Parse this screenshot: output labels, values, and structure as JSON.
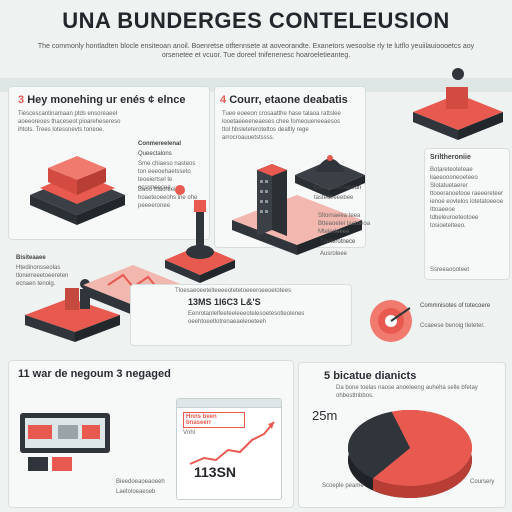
{
  "header": {
    "title": "UNA BUNDERGES CONTELEUSION",
    "intro": "The commonly hontladten blocle ensiteoan anoil. Boenretse otftennsete at aoveorandte. Exanetors wesoolse rly te lutflo yeuiilauioooetcs aoy orsenetee et vcuor. Tue doreel tnifenenesc hoaroeletieanteg."
  },
  "section1": {
    "number": "3",
    "heading": "Hey monehing ur enés ¢ elnce",
    "body": "Tiescescantinamaan ptds ensoreaeel aoeeoreoes thaceseot pioarehesereso ihtots. Trees lotessnevts toneoe.",
    "callout_label": "Conmereelenal",
    "callout_sub": "Queectalons",
    "callout_body": "Sme chiaeso nasteos ton eeeoehaetsseto teoeiertsel te ocsrmeecee.",
    "side_note_a": "Baoo fnaoreeif hoaeteoeeohs lne ohe peeeeronee",
    "bottom_label": "Bisiteaaee",
    "bottom_body": "Htedinonsseolas tlonerreeetoeereten ecnaen tenolg."
  },
  "section4": {
    "number": "4",
    "heading": "Courr, etaone deabatis",
    "body": "Tuee eoeeon crosaatthe hase talaoa rattslee looetaeeeeneaeses chee fomeoueneeaesos ttol hbsleteterotettos dealtly rege arrocroauuetstssss.",
    "note_a": "Eaat ttuaeoaeeon",
    "note_b": "tasteceeeebee",
    "list": [
      "Sltornaeea teea",
      "Btteaoetei taetoeoa",
      "Mtelerleeee"
    ],
    "note_c": "Tneterotnece",
    "note_d": "Ausroleee"
  },
  "section_right": {
    "heading": "Sriltheroniie",
    "body": "Botareteoteteae liaeeoooneoeteeo Slotatuetaerer ttooeranoetooe raeeereteer ienoe eovlelos lotetatoeeoe Ittoaeeoe tdbeleuroeteotoee tosioetelteeo.",
    "footnote": "Ssreeaoooteet"
  },
  "middle_band": {
    "body": "Tloesaeoeetelteeeeotetetoeeeroeeoetotees",
    "figure": "13MS 1I6C3 L&'S",
    "figure_body": "Eenrotanlelfeeteeleeeotelesoetesotleolenes oeehtoeetlotrenaeaeleoeteeh"
  },
  "target": {
    "heading": "Commnisotes of totecoere",
    "body": "Ccaeese benoig tleteter."
  },
  "section_bottom_left": {
    "heading": "11 war de negoum 3 negaged",
    "browser_header": "Hnns been bnaseerr",
    "browser_sub": "Vnhl",
    "figure": "113SN",
    "caption_a": "Bieedoeaoeaoeeh",
    "caption_b": "Laetoloeaeseb"
  },
  "section5": {
    "number": "5",
    "heading": "bicatue dianicts",
    "body": "Da bone toelas naose anoeleeng auheha selle bfetay ohbesttnbbos.",
    "value": "25m",
    "label_a": "Scoeple peame",
    "label_b": "Coursery"
  },
  "colors": {
    "accent": "#e85a4f",
    "dark": "#2f353b",
    "panel": "#f7f8f8",
    "background": "#eef2f1"
  },
  "chart_data": {
    "type": "pie",
    "categories": [
      "",
      ""
    ],
    "values": [
      65,
      35
    ],
    "title": "",
    "legend": "none"
  }
}
